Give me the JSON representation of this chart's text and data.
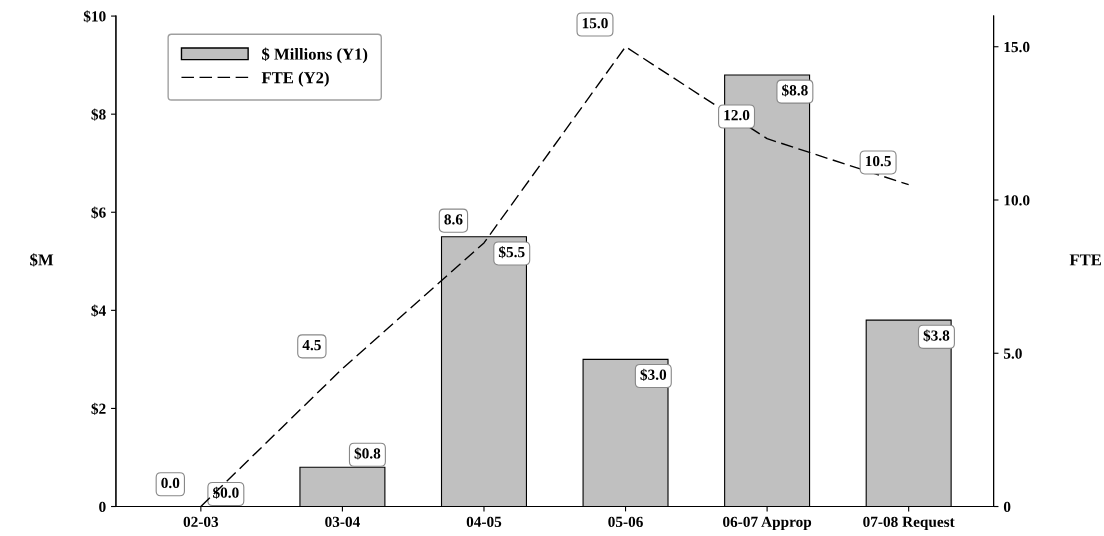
{
  "chart_data": {
    "type": "bar",
    "categories": [
      "02-03",
      "03-04",
      "04-05",
      "05-06",
      "06-07 Approp",
      "07-08 Request"
    ],
    "series": [
      {
        "name": "$ Millions (Y1)",
        "color": "#c0c0c0",
        "values": [
          0.0,
          0.8,
          5.5,
          3.0,
          8.8,
          3.8
        ],
        "value_labels": [
          "$0.0",
          "$0.8",
          "$5.5",
          "$3.0",
          "$8.8",
          "$3.8"
        ]
      },
      {
        "name": "FTE (Y2)",
        "type": "line",
        "axis": "y2",
        "color": "#000000",
        "line_style": "dashed",
        "values": [
          0.0,
          4.5,
          8.6,
          15.0,
          12.0,
          10.5
        ],
        "value_labels": [
          "0.0",
          "4.5",
          "8.6",
          "15.0",
          "12.0",
          "10.5"
        ]
      }
    ],
    "ylabel": "$M",
    "y2label": "FTE",
    "ylim": [
      0,
      10
    ],
    "yticks": [
      {
        "value": 0,
        "label": "0"
      },
      {
        "value": 2,
        "label": "$2"
      },
      {
        "value": 4,
        "label": "$4"
      },
      {
        "value": 6,
        "label": "$6"
      },
      {
        "value": 8,
        "label": "$8"
      },
      {
        "value": 10,
        "label": "$10"
      }
    ],
    "y2lim": [
      0,
      16
    ],
    "y2ticks": [
      {
        "value": 0,
        "label": "0"
      },
      {
        "value": 5,
        "label": "5.0"
      },
      {
        "value": 10,
        "label": "10.0"
      },
      {
        "value": 15,
        "label": "15.0"
      }
    ],
    "legend": "top left",
    "grid": false,
    "marker": "none"
  }
}
